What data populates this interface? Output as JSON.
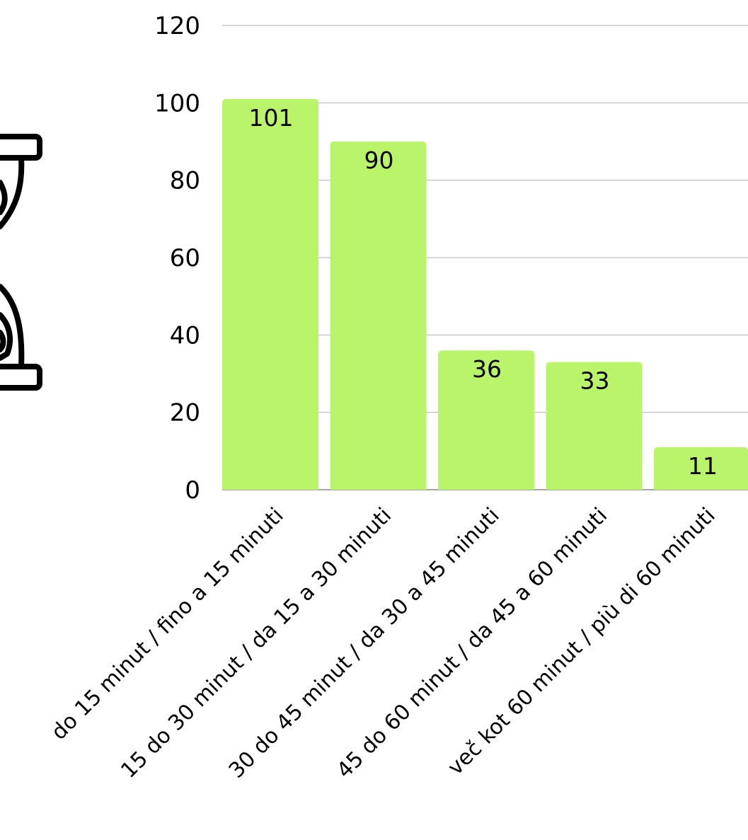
{
  "chart_data": {
    "type": "bar",
    "categories": [
      "do 15 minut / fino a 15 minuti",
      "15 do 30 minut / da 15 a 30 minuti",
      "30 do 45 minut / da 30 a 45 minuti",
      "45 do 60 minut / da 45 a 60 minuti",
      "več kot 60 minut / più di 60 minuti"
    ],
    "values": [
      101,
      90,
      36,
      33,
      11
    ],
    "data_labels": [
      "101",
      "90",
      "36",
      "33",
      "11"
    ],
    "ylim": [
      0,
      120
    ],
    "yticks": [
      "0",
      "20",
      "40",
      "60",
      "80",
      "100",
      "120"
    ],
    "title": "",
    "xlabel": "",
    "ylabel": "",
    "grid": true,
    "legend": "none",
    "bar_color": "#b9f46a",
    "grid_color": "#c9c9c9",
    "axis_color": "#888888"
  },
  "decoration": {
    "icon": "hourglass-icon",
    "icon_color": "#000000"
  }
}
